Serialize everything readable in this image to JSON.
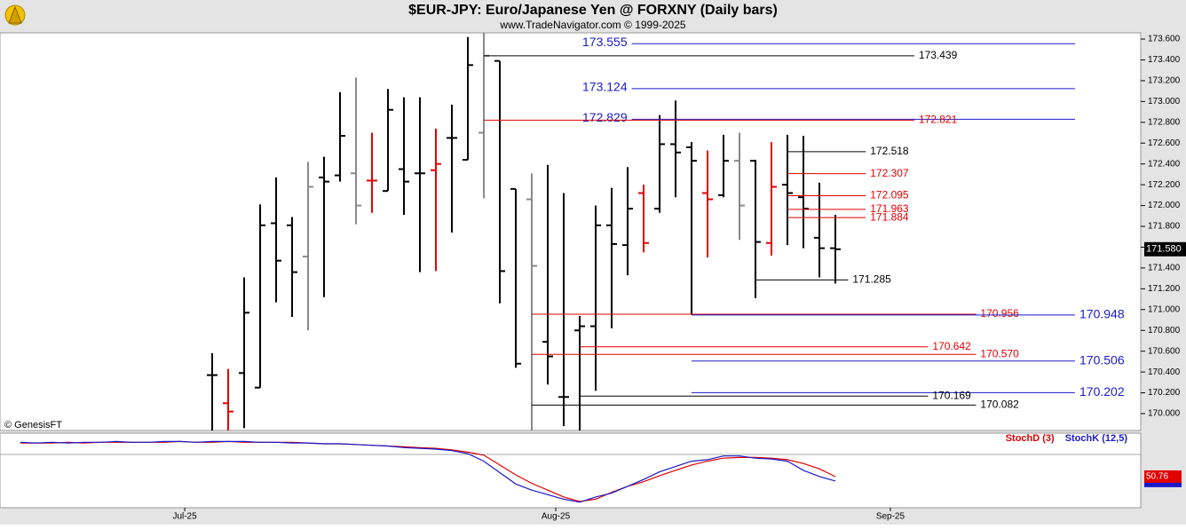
{
  "chart_data": [
    {
      "type": "ohlc",
      "title": "$EUR-JPY:  Euro/Japanese Yen @ FORXNY  (Daily bars)",
      "subtitle": "www.TradeNavigator.com © 1999-2025",
      "credit": "© GenesisFT",
      "x": [
        0,
        1,
        2,
        3,
        4,
        5,
        6,
        7,
        8,
        9,
        10,
        11,
        12,
        13,
        14,
        15,
        16,
        17,
        18,
        19,
        20,
        21,
        22,
        23,
        24,
        25,
        26,
        27,
        28,
        29,
        30,
        31,
        32,
        33,
        34,
        35,
        36,
        37,
        38,
        39
      ],
      "open": [
        170.37,
        170.1,
        170.39,
        170.25,
        171.83,
        171.81,
        171.51,
        172.27,
        172.29,
        172.31,
        172.24,
        172.14,
        172.35,
        172.31,
        172.34,
        172.65,
        172.44,
        172.7,
        173.39,
        172.16,
        172.06,
        170.69,
        170.16,
        170.8,
        170.84,
        171.81,
        171.62,
        172.12,
        171.97,
        172.59,
        172.56,
        172.12,
        172.1,
        172.43,
        172.43,
        171.64,
        172.2,
        172.08,
        171.69,
        171.59
      ],
      "high": [
        170.58,
        170.43,
        171.31,
        172.01,
        172.27,
        171.89,
        172.42,
        172.47,
        173.09,
        173.23,
        172.7,
        173.12,
        173.04,
        173.04,
        172.74,
        172.97,
        173.62,
        173.7,
        173.39,
        172.16,
        172.31,
        172.39,
        172.12,
        170.94,
        172.0,
        172.17,
        172.37,
        172.2,
        172.87,
        173.01,
        172.61,
        172.53,
        172.68,
        172.7,
        172.44,
        172.61,
        172.68,
        172.67,
        172.22,
        171.91
      ],
      "low": [
        169.8,
        169.8,
        169.86,
        170.25,
        171.07,
        170.93,
        170.8,
        171.12,
        172.23,
        171.82,
        171.93,
        172.14,
        171.91,
        171.36,
        171.37,
        171.74,
        172.44,
        172.07,
        171.06,
        170.44,
        169.8,
        170.28,
        169.88,
        169.8,
        170.22,
        170.82,
        171.33,
        171.55,
        171.93,
        172.08,
        170.95,
        171.5,
        172.08,
        171.67,
        171.11,
        171.52,
        171.62,
        171.59,
        171.31,
        171.25
      ],
      "close": [
        170.37,
        170.02,
        170.97,
        171.81,
        171.47,
        171.36,
        172.18,
        172.23,
        172.67,
        172.0,
        172.24,
        172.92,
        172.23,
        172.31,
        172.4,
        172.65,
        173.35,
        173.44,
        171.37,
        170.48,
        171.42,
        170.55,
        170.16,
        170.84,
        171.81,
        171.63,
        171.97,
        171.64,
        172.59,
        172.51,
        172.43,
        172.06,
        172.43,
        172.0,
        171.65,
        172.18,
        172.12,
        171.97,
        171.59,
        171.58
      ],
      "colors": [
        "#000000",
        "#e00000",
        "#000000",
        "#000000",
        "#000000",
        "#000000",
        "#888888",
        "#000000",
        "#000000",
        "#888888",
        "#e00000",
        "#000000",
        "#000000",
        "#000000",
        "#e00000",
        "#000000",
        "#000000",
        "#888888",
        "#000000",
        "#000000",
        "#888888",
        "#000000",
        "#000000",
        "#000000",
        "#000000",
        "#000000",
        "#000000",
        "#e00000",
        "#000000",
        "#000000",
        "#000000",
        "#e00000",
        "#000000",
        "#888888",
        "#000000",
        "#e00000",
        "#000000",
        "#000000",
        "#000000",
        "#000000"
      ],
      "last_label": "171.580",
      "xlim": [
        -13.28,
        58.11
      ],
      "ylim": [
        169.838,
        173.66
      ],
      "yticks": [
        {
          "value": 170.0,
          "label": "170.000"
        },
        {
          "value": 170.2,
          "label": "170.200"
        },
        {
          "value": 170.4,
          "label": "170.400"
        },
        {
          "value": 170.6,
          "label": "170.600"
        },
        {
          "value": 170.8,
          "label": "170.800"
        },
        {
          "value": 171.0,
          "label": "171.000"
        },
        {
          "value": 171.2,
          "label": "171.200"
        },
        {
          "value": 171.4,
          "label": "171.400"
        },
        {
          "value": 171.6,
          "label": "171.600"
        },
        {
          "value": 171.8,
          "label": "171.800"
        },
        {
          "value": 172.0,
          "label": "172.000"
        },
        {
          "value": 172.2,
          "label": "172.200"
        },
        {
          "value": 172.4,
          "label": "172.400"
        },
        {
          "value": 172.6,
          "label": "172.600"
        },
        {
          "value": 172.8,
          "label": "172.800"
        },
        {
          "value": 173.0,
          "label": "173.000"
        },
        {
          "value": 173.2,
          "label": "173.200"
        },
        {
          "value": 173.4,
          "label": "173.400"
        },
        {
          "value": 173.6,
          "label": "173.600"
        }
      ],
      "levels": [
        {
          "value": 173.555,
          "label": "173.555",
          "color": "#1a1acc",
          "from": 23,
          "to": 54,
          "placement": "left"
        },
        {
          "value": 173.439,
          "label": "173.439",
          "color": "#000000",
          "from": 17,
          "to": 43.94,
          "placement": "end"
        },
        {
          "value": 173.124,
          "label": "173.124",
          "color": "#1a1acc",
          "from": 23,
          "to": 54,
          "placement": "left"
        },
        {
          "value": 172.829,
          "label": "172.829",
          "color": "#1a1acc",
          "from": 23,
          "to": 54,
          "placement": "left"
        },
        {
          "value": 172.821,
          "label": "172.821",
          "color": "#e00000",
          "from": 17,
          "to": 43.94,
          "placement": "end"
        },
        {
          "value": 172.518,
          "label": "172.518",
          "color": "#000000",
          "from": 36,
          "to": 40.9,
          "placement": "end"
        },
        {
          "value": 172.307,
          "label": "172.307",
          "color": "#e00000",
          "from": 36,
          "to": 40.9,
          "placement": "end"
        },
        {
          "value": 172.095,
          "label": "172.095",
          "color": "#e00000",
          "from": 36,
          "to": 40.9,
          "placement": "end"
        },
        {
          "value": 171.963,
          "label": "171.963",
          "color": "#e00000",
          "from": 36,
          "to": 40.9,
          "placement": "end"
        },
        {
          "value": 171.884,
          "label": "171.884",
          "color": "#e00000",
          "from": 36,
          "to": 40.9,
          "placement": "end"
        },
        {
          "value": 171.285,
          "label": "171.285",
          "color": "#000000",
          "from": 34,
          "to": 39.8,
          "placement": "end"
        },
        {
          "value": 170.956,
          "label": "170.956",
          "color": "#e00000",
          "from": 20,
          "to": 47.8,
          "placement": "end"
        },
        {
          "value": 170.948,
          "label": "170.948",
          "color": "#1a1acc",
          "from": 30,
          "to": 54,
          "placement": "right"
        },
        {
          "value": 170.642,
          "label": "170.642",
          "color": "#e00000",
          "from": 23,
          "to": 44.8,
          "placement": "end"
        },
        {
          "value": 170.57,
          "label": "170.570",
          "color": "#e00000",
          "from": 20,
          "to": 47.8,
          "placement": "end"
        },
        {
          "value": 170.506,
          "label": "170.506",
          "color": "#1a1acc",
          "from": 30,
          "to": 54,
          "placement": "right"
        },
        {
          "value": 170.202,
          "label": "170.202",
          "color": "#1a1acc",
          "from": 30,
          "to": 54,
          "placement": "right"
        },
        {
          "value": 170.169,
          "label": "170.169",
          "color": "#000000",
          "from": 23,
          "to": 44.8,
          "placement": "end"
        },
        {
          "value": 170.082,
          "label": "170.082",
          "color": "#000000",
          "from": 20,
          "to": 47.8,
          "placement": "end"
        }
      ]
    },
    {
      "type": "line",
      "x": [
        -12,
        -11,
        -10,
        -9,
        -8,
        -7,
        -6,
        -5,
        -4,
        -3,
        -2,
        -1,
        0,
        1,
        2,
        3,
        4,
        5,
        6,
        7,
        8,
        9,
        10,
        11,
        12,
        13,
        14,
        15,
        16,
        17,
        18,
        19,
        20,
        21,
        22,
        23,
        24,
        25,
        26,
        27,
        28,
        29,
        30,
        31,
        32,
        33,
        34,
        35,
        36,
        37,
        38,
        39
      ],
      "series": [
        {
          "name": "StochD (3)",
          "color": "#e00000",
          "values": [
            95,
            95,
            95,
            96,
            95,
            96,
            96,
            96,
            96,
            96,
            97,
            96,
            96,
            97,
            96,
            96,
            96,
            96,
            95,
            94,
            94,
            93,
            92,
            91,
            90,
            89,
            88,
            86,
            83,
            79,
            66,
            53,
            42,
            33,
            24,
            18,
            21,
            30,
            38,
            44,
            52,
            59,
            66,
            71,
            75,
            76,
            76,
            75,
            73,
            68,
            61,
            50.76
          ]
        },
        {
          "name": "StochK (12,5)",
          "color": "#1a1acc",
          "values": [
            96,
            95,
            96,
            95,
            96,
            96,
            97,
            96,
            96,
            97,
            97,
            96,
            97,
            97,
            97,
            96,
            96,
            95,
            95,
            94,
            94,
            93,
            92,
            91,
            89,
            88,
            87,
            85,
            81,
            71,
            56,
            41,
            33,
            27,
            21,
            17,
            24,
            29,
            38,
            47,
            57,
            64,
            71,
            73,
            78,
            78,
            75,
            74,
            71,
            59,
            51,
            45
          ]
        }
      ],
      "xlim": [
        -13.28,
        58.11
      ],
      "ylim": [
        9.8,
        108
      ],
      "xticks": [
        {
          "value": -1.72,
          "label": "Jul-25"
        },
        {
          "value": 21.5,
          "label": "Aug-25"
        },
        {
          "value": 42.44,
          "label": "Sep-25"
        }
      ]
    }
  ]
}
